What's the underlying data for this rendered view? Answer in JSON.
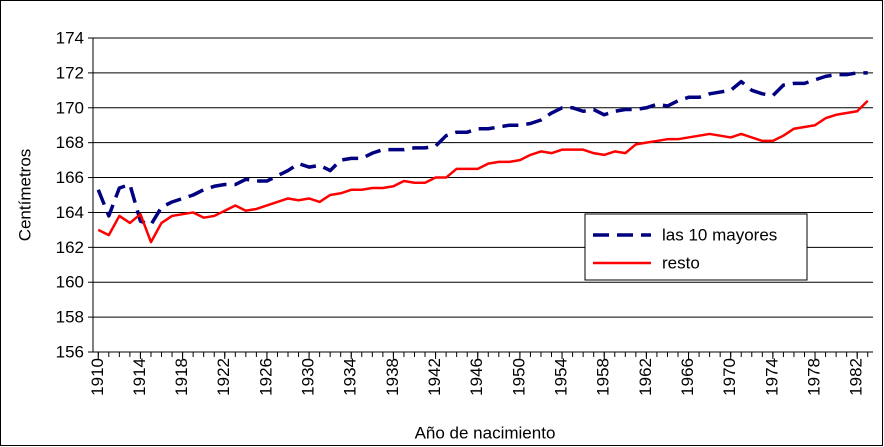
{
  "chart_data": {
    "type": "line",
    "y_label": "Centímetros",
    "x_label": "Año de nacimiento",
    "x": [
      1910,
      1911,
      1912,
      1913,
      1914,
      1915,
      1916,
      1917,
      1918,
      1919,
      1920,
      1921,
      1922,
      1923,
      1924,
      1925,
      1926,
      1927,
      1928,
      1929,
      1930,
      1931,
      1932,
      1933,
      1934,
      1935,
      1936,
      1937,
      1938,
      1939,
      1940,
      1941,
      1942,
      1943,
      1944,
      1945,
      1946,
      1947,
      1948,
      1949,
      1950,
      1951,
      1952,
      1953,
      1954,
      1955,
      1956,
      1957,
      1958,
      1959,
      1960,
      1961,
      1962,
      1963,
      1964,
      1965,
      1966,
      1967,
      1968,
      1969,
      1970,
      1971,
      1972,
      1973,
      1974,
      1975,
      1976,
      1977,
      1978,
      1979,
      1980,
      1981,
      1982,
      1983
    ],
    "xlim": [
      1909.5,
      1983.5
    ],
    "xticks": [
      1910,
      1914,
      1918,
      1922,
      1926,
      1930,
      1934,
      1938,
      1942,
      1946,
      1950,
      1954,
      1958,
      1962,
      1966,
      1970,
      1974,
      1978,
      1982
    ],
    "ylim": [
      156,
      174
    ],
    "yticks": [
      156,
      158,
      160,
      162,
      164,
      166,
      168,
      170,
      172,
      174
    ],
    "grid": true,
    "legend": "right",
    "series": [
      {
        "name": "las 10 mayores",
        "color": "#000080",
        "dashed": true,
        "values": [
          165.3,
          163.8,
          165.4,
          165.6,
          163.5,
          163.3,
          164.3,
          164.6,
          164.8,
          165.0,
          165.3,
          165.5,
          165.6,
          165.6,
          165.9,
          165.8,
          165.8,
          166.1,
          166.4,
          166.8,
          166.6,
          166.7,
          166.4,
          167.0,
          167.1,
          167.1,
          167.4,
          167.6,
          167.6,
          167.6,
          167.7,
          167.7,
          167.8,
          168.4,
          168.6,
          168.6,
          168.8,
          168.8,
          168.9,
          169.0,
          169.0,
          169.1,
          169.3,
          169.7,
          170.0,
          170.0,
          169.8,
          169.9,
          169.6,
          169.8,
          169.9,
          169.9,
          170.0,
          170.2,
          170.1,
          170.4,
          170.6,
          170.6,
          170.8,
          170.9,
          171.0,
          171.5,
          171.0,
          170.8,
          170.7,
          171.3,
          171.4,
          171.4,
          171.6,
          171.8,
          171.9,
          171.9,
          172.0,
          172.0
        ]
      },
      {
        "name": "resto",
        "color": "#ff0000",
        "dashed": false,
        "values": [
          163.0,
          162.7,
          163.8,
          163.4,
          163.9,
          162.3,
          163.4,
          163.8,
          163.9,
          164.0,
          163.7,
          163.8,
          164.1,
          164.4,
          164.1,
          164.2,
          164.4,
          164.6,
          164.8,
          164.7,
          164.8,
          164.6,
          165.0,
          165.1,
          165.3,
          165.3,
          165.4,
          165.4,
          165.5,
          165.8,
          165.7,
          165.7,
          166.0,
          166.0,
          166.5,
          166.5,
          166.5,
          166.8,
          166.9,
          166.9,
          167.0,
          167.3,
          167.5,
          167.4,
          167.6,
          167.6,
          167.6,
          167.4,
          167.3,
          167.5,
          167.4,
          167.9,
          168.0,
          168.1,
          168.2,
          168.2,
          168.3,
          168.4,
          168.5,
          168.4,
          168.3,
          168.5,
          168.3,
          168.1,
          168.1,
          168.4,
          168.8,
          168.9,
          169.0,
          169.4,
          169.6,
          169.7,
          169.8,
          170.4
        ]
      }
    ]
  }
}
